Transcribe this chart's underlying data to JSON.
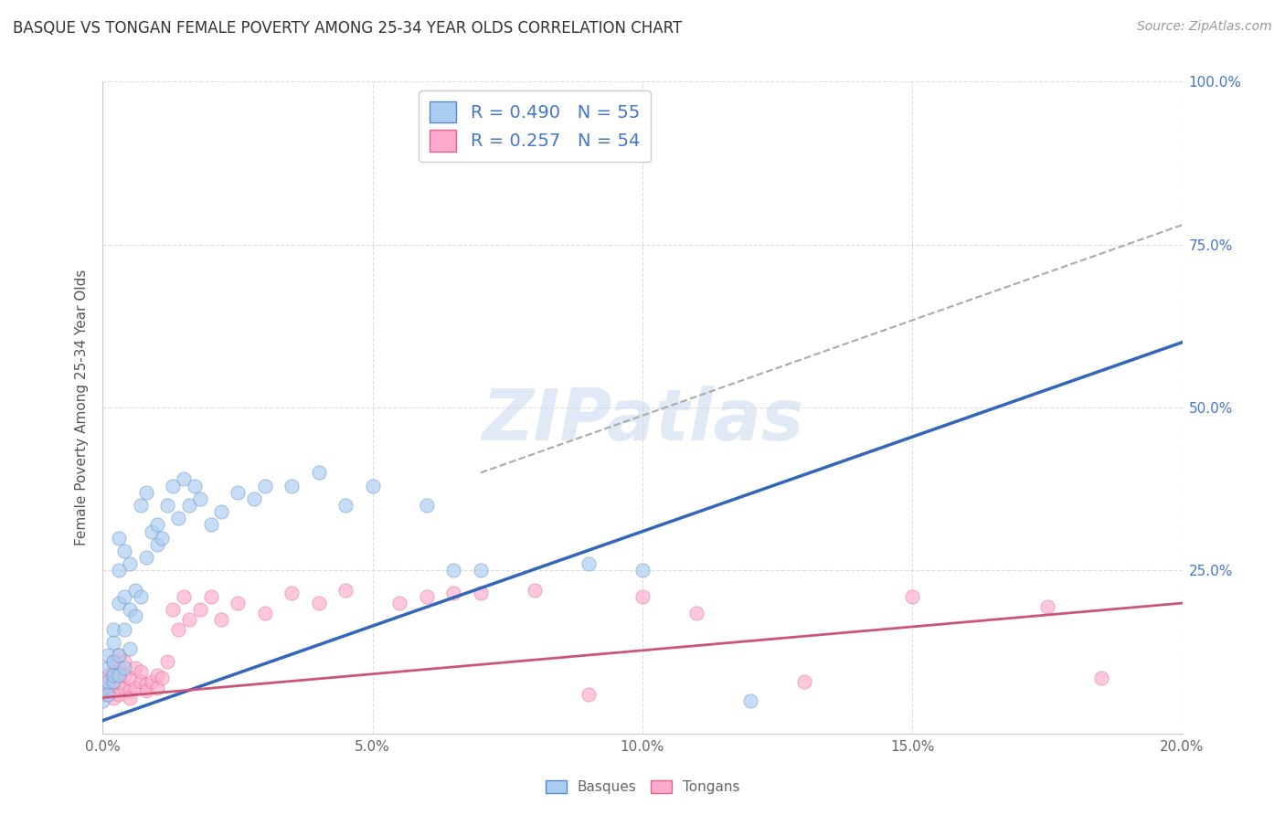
{
  "title": "BASQUE VS TONGAN FEMALE POVERTY AMONG 25-34 YEAR OLDS CORRELATION CHART",
  "source": "Source: ZipAtlas.com",
  "ylabel": "Female Poverty Among 25-34 Year Olds",
  "legend_r_blue": "0.490",
  "legend_n_blue": "55",
  "legend_r_pink": "0.257",
  "legend_n_pink": "54",
  "blue_face": "#aaccf0",
  "blue_edge": "#5588cc",
  "pink_face": "#ffaacc",
  "pink_edge": "#dd6688",
  "blue_line_color": "#3366bb",
  "pink_line_color": "#cc5577",
  "gray_dash_color": "#aaaaaa",
  "watermark_color": "#c8d8f0",
  "watermark_text": "ZIPatlas",
  "xmin": 0.0,
  "xmax": 0.2,
  "ymin": 0.0,
  "ymax": 1.0,
  "blue_line": [
    0.0,
    0.2,
    0.02,
    0.6
  ],
  "pink_line": [
    0.0,
    0.2,
    0.055,
    0.2
  ],
  "gray_dash": [
    0.07,
    0.2,
    0.4,
    0.78
  ],
  "basque_points": [
    [
      0.0,
      0.05
    ],
    [
      0.0,
      0.07
    ],
    [
      0.001,
      0.06
    ],
    [
      0.001,
      0.08
    ],
    [
      0.001,
      0.1
    ],
    [
      0.001,
      0.12
    ],
    [
      0.002,
      0.08
    ],
    [
      0.002,
      0.09
    ],
    [
      0.002,
      0.11
    ],
    [
      0.002,
      0.14
    ],
    [
      0.002,
      0.16
    ],
    [
      0.003,
      0.09
    ],
    [
      0.003,
      0.12
    ],
    [
      0.003,
      0.2
    ],
    [
      0.003,
      0.25
    ],
    [
      0.003,
      0.3
    ],
    [
      0.004,
      0.1
    ],
    [
      0.004,
      0.16
    ],
    [
      0.004,
      0.21
    ],
    [
      0.004,
      0.28
    ],
    [
      0.005,
      0.13
    ],
    [
      0.005,
      0.19
    ],
    [
      0.005,
      0.26
    ],
    [
      0.006,
      0.18
    ],
    [
      0.006,
      0.22
    ],
    [
      0.007,
      0.21
    ],
    [
      0.007,
      0.35
    ],
    [
      0.008,
      0.27
    ],
    [
      0.008,
      0.37
    ],
    [
      0.009,
      0.31
    ],
    [
      0.01,
      0.32
    ],
    [
      0.01,
      0.29
    ],
    [
      0.011,
      0.3
    ],
    [
      0.012,
      0.35
    ],
    [
      0.013,
      0.38
    ],
    [
      0.014,
      0.33
    ],
    [
      0.015,
      0.39
    ],
    [
      0.016,
      0.35
    ],
    [
      0.017,
      0.38
    ],
    [
      0.018,
      0.36
    ],
    [
      0.02,
      0.32
    ],
    [
      0.022,
      0.34
    ],
    [
      0.025,
      0.37
    ],
    [
      0.028,
      0.36
    ],
    [
      0.03,
      0.38
    ],
    [
      0.035,
      0.38
    ],
    [
      0.04,
      0.4
    ],
    [
      0.045,
      0.35
    ],
    [
      0.05,
      0.38
    ],
    [
      0.06,
      0.35
    ],
    [
      0.065,
      0.25
    ],
    [
      0.07,
      0.25
    ],
    [
      0.09,
      0.26
    ],
    [
      0.1,
      0.25
    ],
    [
      0.12,
      0.05
    ]
  ],
  "tongan_points": [
    [
      0.0,
      0.06
    ],
    [
      0.0,
      0.08
    ],
    [
      0.001,
      0.07
    ],
    [
      0.001,
      0.09
    ],
    [
      0.001,
      0.06
    ],
    [
      0.002,
      0.055
    ],
    [
      0.002,
      0.075
    ],
    [
      0.002,
      0.095
    ],
    [
      0.002,
      0.11
    ],
    [
      0.003,
      0.06
    ],
    [
      0.003,
      0.08
    ],
    [
      0.003,
      0.1
    ],
    [
      0.003,
      0.12
    ],
    [
      0.004,
      0.07
    ],
    [
      0.004,
      0.09
    ],
    [
      0.004,
      0.11
    ],
    [
      0.005,
      0.065
    ],
    [
      0.005,
      0.085
    ],
    [
      0.005,
      0.055
    ],
    [
      0.006,
      0.07
    ],
    [
      0.006,
      0.1
    ],
    [
      0.007,
      0.08
    ],
    [
      0.007,
      0.095
    ],
    [
      0.008,
      0.075
    ],
    [
      0.008,
      0.065
    ],
    [
      0.009,
      0.08
    ],
    [
      0.01,
      0.07
    ],
    [
      0.01,
      0.09
    ],
    [
      0.011,
      0.085
    ],
    [
      0.012,
      0.11
    ],
    [
      0.013,
      0.19
    ],
    [
      0.014,
      0.16
    ],
    [
      0.015,
      0.21
    ],
    [
      0.016,
      0.175
    ],
    [
      0.018,
      0.19
    ],
    [
      0.02,
      0.21
    ],
    [
      0.022,
      0.175
    ],
    [
      0.025,
      0.2
    ],
    [
      0.03,
      0.185
    ],
    [
      0.035,
      0.215
    ],
    [
      0.04,
      0.2
    ],
    [
      0.045,
      0.22
    ],
    [
      0.055,
      0.2
    ],
    [
      0.06,
      0.21
    ],
    [
      0.065,
      0.215
    ],
    [
      0.07,
      0.215
    ],
    [
      0.08,
      0.22
    ],
    [
      0.09,
      0.06
    ],
    [
      0.1,
      0.21
    ],
    [
      0.11,
      0.185
    ],
    [
      0.13,
      0.08
    ],
    [
      0.15,
      0.21
    ],
    [
      0.175,
      0.195
    ],
    [
      0.185,
      0.085
    ]
  ],
  "ytick_vals": [
    0.0,
    0.25,
    0.5,
    0.75,
    1.0
  ],
  "ytick_labels_right": [
    "",
    "25.0%",
    "50.0%",
    "75.0%",
    "100.0%"
  ],
  "xtick_vals": [
    0.0,
    0.05,
    0.1,
    0.15,
    0.2
  ],
  "xtick_labels": [
    "0.0%",
    "5.0%",
    "10.0%",
    "15.0%",
    "20.0%"
  ],
  "bg_color": "#ffffff",
  "grid_color": "#dddddd",
  "tick_color": "#666666",
  "right_tick_color": "#4477cc",
  "title_color": "#333333",
  "source_color": "#999999",
  "ylabel_color": "#555555",
  "scatter_size": 120,
  "scatter_alpha": 0.65,
  "scatter_lw": 0.5
}
